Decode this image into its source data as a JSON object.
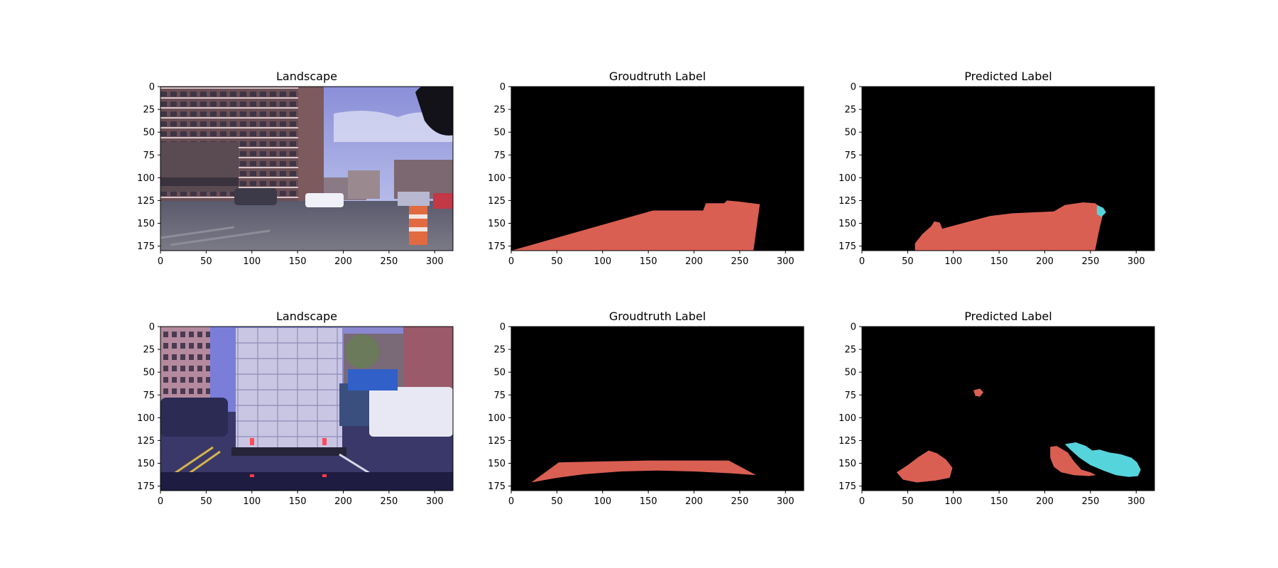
{
  "figure": {
    "colors": {
      "road": "#d95f52",
      "car": "#56d4dc",
      "background": "#000000"
    }
  },
  "chart_data": [
    {
      "type": "image",
      "title": "Landscape",
      "xlim": [
        0,
        320
      ],
      "ylim": [
        180,
        0
      ],
      "xticks": [
        0,
        50,
        100,
        150,
        200,
        250,
        300
      ],
      "yticks": [
        0,
        25,
        50,
        75,
        100,
        125,
        150,
        175
      ],
      "content": "street-scene-photo-1"
    },
    {
      "type": "image",
      "title": "Groudtruth Label",
      "xlim": [
        0,
        320
      ],
      "ylim": [
        180,
        0
      ],
      "xticks": [
        0,
        50,
        100,
        150,
        200,
        250,
        300
      ],
      "yticks": [
        0,
        25,
        50,
        75,
        100,
        125,
        150,
        175
      ],
      "regions": [
        {
          "class": "road",
          "color": "#d95f52",
          "polygon": [
            [
              0,
              180
            ],
            [
              155,
              136
            ],
            [
              210,
              136
            ],
            [
              213,
              128
            ],
            [
              233,
              128
            ],
            [
              236,
              125
            ],
            [
              248,
              126
            ],
            [
              272,
              129
            ],
            [
              265,
              180
            ]
          ]
        }
      ]
    },
    {
      "type": "image",
      "title": "Predicted Label",
      "xlim": [
        0,
        320
      ],
      "ylim": [
        180,
        0
      ],
      "xticks": [
        0,
        50,
        100,
        150,
        200,
        250,
        300
      ],
      "yticks": [
        0,
        25,
        50,
        75,
        100,
        125,
        150,
        175
      ],
      "regions": [
        {
          "class": "road",
          "color": "#d95f52",
          "polygon": [
            [
              58,
              180
            ],
            [
              58,
              172
            ],
            [
              66,
              162
            ],
            [
              76,
              153
            ],
            [
              79,
              148
            ],
            [
              85,
              149
            ],
            [
              88,
              156
            ],
            [
              95,
              154
            ],
            [
              110,
              150
            ],
            [
              125,
              146
            ],
            [
              140,
              142
            ],
            [
              165,
              139
            ],
            [
              210,
              137
            ],
            [
              222,
              130
            ],
            [
              242,
              127
            ],
            [
              255,
              128
            ],
            [
              262,
              133
            ],
            [
              263,
              143
            ],
            [
              260,
              155
            ],
            [
              258,
              165
            ],
            [
              255,
              180
            ]
          ]
        },
        {
          "class": "car",
          "color": "#56d4dc",
          "polygon": [
            [
              257,
              130
            ],
            [
              264,
              133
            ],
            [
              267,
              138
            ],
            [
              262,
              143
            ],
            [
              257,
              140
            ]
          ]
        }
      ]
    },
    {
      "type": "image",
      "title": "Landscape",
      "xlim": [
        0,
        320
      ],
      "ylim": [
        180,
        0
      ],
      "xticks": [
        0,
        50,
        100,
        150,
        200,
        250,
        300
      ],
      "yticks": [
        0,
        25,
        50,
        75,
        100,
        125,
        150,
        175
      ],
      "content": "street-scene-photo-2"
    },
    {
      "type": "image",
      "title": "Groudtruth Label",
      "xlim": [
        0,
        320
      ],
      "ylim": [
        180,
        0
      ],
      "xticks": [
        0,
        50,
        100,
        150,
        200,
        250,
        300
      ],
      "yticks": [
        0,
        25,
        50,
        75,
        100,
        125,
        150,
        175
      ],
      "regions": [
        {
          "class": "road",
          "color": "#d95f52",
          "polygon": [
            [
              22,
              171
            ],
            [
              52,
              149
            ],
            [
              100,
              148
            ],
            [
              150,
              147
            ],
            [
              200,
              147
            ],
            [
              238,
              147
            ],
            [
              268,
              163
            ],
            [
              240,
              161
            ],
            [
              200,
              159
            ],
            [
              160,
              158
            ],
            [
              120,
              159
            ],
            [
              80,
              162
            ],
            [
              50,
              166
            ]
          ]
        }
      ]
    },
    {
      "type": "image",
      "title": "Predicted Label",
      "xlim": [
        0,
        320
      ],
      "ylim": [
        180,
        0
      ],
      "xticks": [
        0,
        50,
        100,
        150,
        200,
        250,
        300
      ],
      "yticks": [
        0,
        25,
        50,
        75,
        100,
        125,
        150,
        175
      ],
      "regions": [
        {
          "class": "road",
          "color": "#d95f52",
          "polygon": [
            [
              122,
              70
            ],
            [
              129,
              68
            ],
            [
              133,
              72
            ],
            [
              129,
              77
            ],
            [
              124,
              76
            ]
          ]
        },
        {
          "class": "road",
          "color": "#d95f52",
          "polygon": [
            [
              38,
              160
            ],
            [
              50,
              152
            ],
            [
              62,
              143
            ],
            [
              73,
              136
            ],
            [
              82,
              139
            ],
            [
              92,
              146
            ],
            [
              99,
              155
            ],
            [
              96,
              166
            ],
            [
              80,
              169
            ],
            [
              60,
              171
            ],
            [
              45,
              168
            ]
          ]
        },
        {
          "class": "road",
          "color": "#d95f52",
          "polygon": [
            [
              206,
              132
            ],
            [
              213,
              131
            ],
            [
              225,
              138
            ],
            [
              232,
              148
            ],
            [
              240,
              157
            ],
            [
              250,
              160
            ],
            [
              256,
              163
            ],
            [
              248,
              164
            ],
            [
              232,
              163
            ],
            [
              218,
              160
            ],
            [
              210,
              154
            ],
            [
              206,
              144
            ]
          ]
        },
        {
          "class": "car",
          "color": "#56d4dc",
          "polygon": [
            [
              222,
              129
            ],
            [
              234,
              127
            ],
            [
              245,
              131
            ],
            [
              252,
              136
            ],
            [
              260,
              135
            ],
            [
              270,
              138
            ],
            [
              283,
              140
            ],
            [
              295,
              144
            ],
            [
              301,
              149
            ],
            [
              305,
              157
            ],
            [
              302,
              164
            ],
            [
              292,
              165
            ],
            [
              278,
              163
            ],
            [
              264,
              158
            ],
            [
              250,
              152
            ],
            [
              238,
              144
            ],
            [
              228,
              135
            ]
          ]
        }
      ]
    }
  ]
}
